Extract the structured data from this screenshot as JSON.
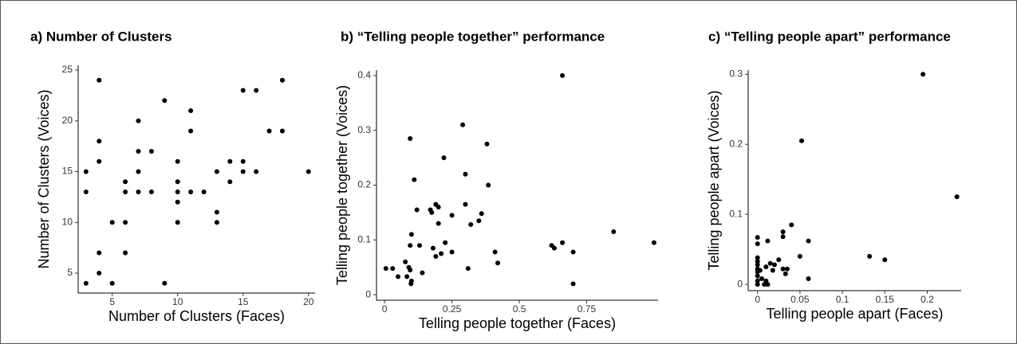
{
  "chart_data": [
    {
      "type": "scatter",
      "title": "a) Number of Clusters",
      "x_label": "Number of Clusters (Faces)",
      "y_label": "Number of Clusters (Voices)",
      "color": "#000000",
      "x": [
        3,
        3,
        3,
        4,
        4,
        4,
        4,
        4,
        5,
        5,
        6,
        6,
        6,
        6,
        7,
        7,
        7,
        7,
        8,
        8,
        9,
        9,
        10,
        10,
        10,
        10,
        10,
        11,
        11,
        11,
        12,
        13,
        13,
        13,
        14,
        14,
        15,
        15,
        15,
        16,
        16,
        17,
        18,
        18,
        20
      ],
      "values": [
        15,
        13,
        4,
        24,
        18,
        16,
        7,
        5,
        10,
        4,
        14,
        13,
        10,
        7,
        20,
        17,
        15,
        13,
        17,
        13,
        22,
        4,
        16,
        14,
        13,
        12,
        10,
        21,
        19,
        13,
        13,
        15,
        11,
        10,
        16,
        14,
        23,
        16,
        15,
        23,
        15,
        19,
        24,
        19,
        15
      ],
      "xlim": [
        2.4,
        20.5
      ],
      "ylim": [
        3.04,
        25.47
      ],
      "xticks": [
        5,
        10,
        15,
        20
      ],
      "yticks": [
        5,
        10,
        15,
        20,
        25
      ]
    },
    {
      "type": "scatter",
      "title": "b) “Telling people together” performance",
      "x_label": "Telling people together (Faces)",
      "y_label": "Telling people together (Voices)",
      "color": "#000000",
      "x": [
        0.005,
        0.03,
        0.05,
        0.077,
        0.083,
        0.09,
        0.095,
        0.095,
        0.095,
        0.1,
        0.098,
        0.1,
        0.11,
        0.12,
        0.13,
        0.14,
        0.17,
        0.175,
        0.18,
        0.19,
        0.19,
        0.2,
        0.2,
        0.21,
        0.22,
        0.225,
        0.25,
        0.25,
        0.29,
        0.3,
        0.3,
        0.31,
        0.32,
        0.35,
        0.36,
        0.38,
        0.385,
        0.41,
        0.42,
        0.62,
        0.63,
        0.66,
        0.66,
        0.7,
        0.7,
        0.85,
        1.0
      ],
      "values": [
        0.048,
        0.048,
        0.033,
        0.06,
        0.033,
        0.05,
        0.045,
        0.09,
        0.285,
        0.11,
        0.02,
        0.025,
        0.21,
        0.155,
        0.09,
        0.04,
        0.155,
        0.15,
        0.085,
        0.165,
        0.07,
        0.16,
        0.13,
        0.075,
        0.25,
        0.095,
        0.145,
        0.078,
        0.31,
        0.22,
        0.165,
        0.048,
        0.128,
        0.135,
        0.148,
        0.275,
        0.2,
        0.078,
        0.058,
        0.09,
        0.085,
        0.4,
        0.095,
        0.078,
        0.02,
        0.115,
        0.095
      ],
      "xlim": [
        -0.03,
        1.015
      ],
      "ylim": [
        -0.01,
        0.41
      ],
      "xticks": [
        0,
        0.25,
        0.5,
        0.75
      ],
      "yticks": [
        0,
        0.1,
        0.2,
        0.3,
        0.4
      ]
    },
    {
      "type": "scatter",
      "title": "c) “Telling people apart” performance",
      "x_label": "Telling people apart (Faces)",
      "y_label": "Telling people apart (Voices)",
      "color": "#000000",
      "x": [
        0,
        0,
        0,
        0,
        0,
        0,
        0,
        0,
        0,
        0,
        0.003,
        0.005,
        0.008,
        0.01,
        0.01,
        0.012,
        0.012,
        0.015,
        0.018,
        0.02,
        0.025,
        0.03,
        0.03,
        0.03,
        0.033,
        0.035,
        0.04,
        0.05,
        0.052,
        0.06,
        0.06,
        0.132,
        0.15,
        0.195,
        0.235
      ],
      "values": [
        0.067,
        0.058,
        0.038,
        0.033,
        0.028,
        0.022,
        0.018,
        0.012,
        0.005,
        0,
        0.02,
        0.008,
        0,
        0.025,
        0.005,
        0,
        0.062,
        0.03,
        0.02,
        0.028,
        0.035,
        0.075,
        0.068,
        0.022,
        0.015,
        0.022,
        0.085,
        0.04,
        0.205,
        0.062,
        0.008,
        0.04,
        0.035,
        0.3,
        0.125
      ],
      "xlim": [
        -0.011,
        0.24
      ],
      "ylim": [
        -0.009,
        0.306
      ],
      "xticks": [
        0,
        0.05,
        0.1,
        0.15,
        0.2
      ],
      "yticks": [
        0,
        0.1,
        0.2,
        0.3
      ]
    }
  ]
}
